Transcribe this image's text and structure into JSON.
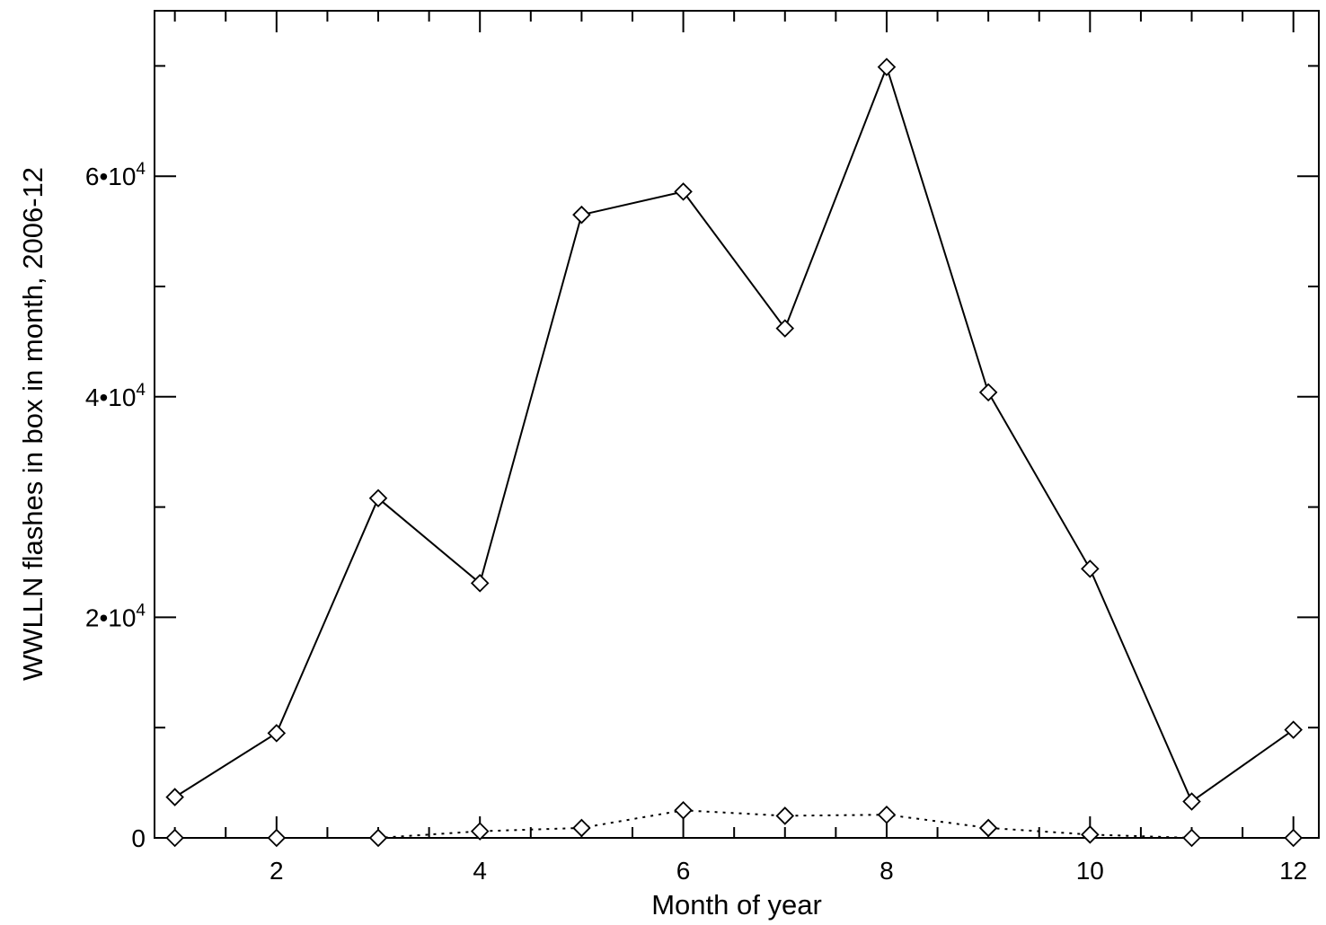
{
  "chart_data": {
    "type": "line",
    "xlabel": "Month of year",
    "ylabel": "WWLLN flashes in box in month, 2006-12",
    "xlim": [
      0.8,
      12.25
    ],
    "ylim": [
      0,
      75000
    ],
    "x_ticks": [
      2,
      4,
      6,
      8,
      10,
      12
    ],
    "x_tick_labels": [
      "2",
      "4",
      "6",
      "8",
      "10",
      "12"
    ],
    "y_ticks": [
      0,
      20000,
      40000,
      60000
    ],
    "y_tick_labels": [
      {
        "mant": "0",
        "exp": ""
      },
      {
        "mant": "2•10",
        "exp": "4"
      },
      {
        "mant": "4•10",
        "exp": "4"
      },
      {
        "mant": "6•10",
        "exp": "4"
      }
    ],
    "grid": false,
    "legend": "none",
    "marker": "diamond",
    "series": [
      {
        "style": "solid",
        "x": [
          1,
          2,
          3,
          4,
          5,
          6,
          7,
          8,
          9,
          10,
          11,
          12
        ],
        "y": [
          3700,
          9500,
          30800,
          23100,
          56500,
          58600,
          46200,
          69900,
          40400,
          24400,
          3300,
          9800
        ]
      },
      {
        "style": "dotted",
        "x": [
          1,
          2,
          3,
          4,
          5,
          6,
          7,
          8,
          9,
          10,
          11,
          12
        ],
        "y": [
          0,
          0,
          0,
          600,
          900,
          2500,
          2000,
          2100,
          900,
          300,
          0,
          0
        ]
      }
    ]
  }
}
